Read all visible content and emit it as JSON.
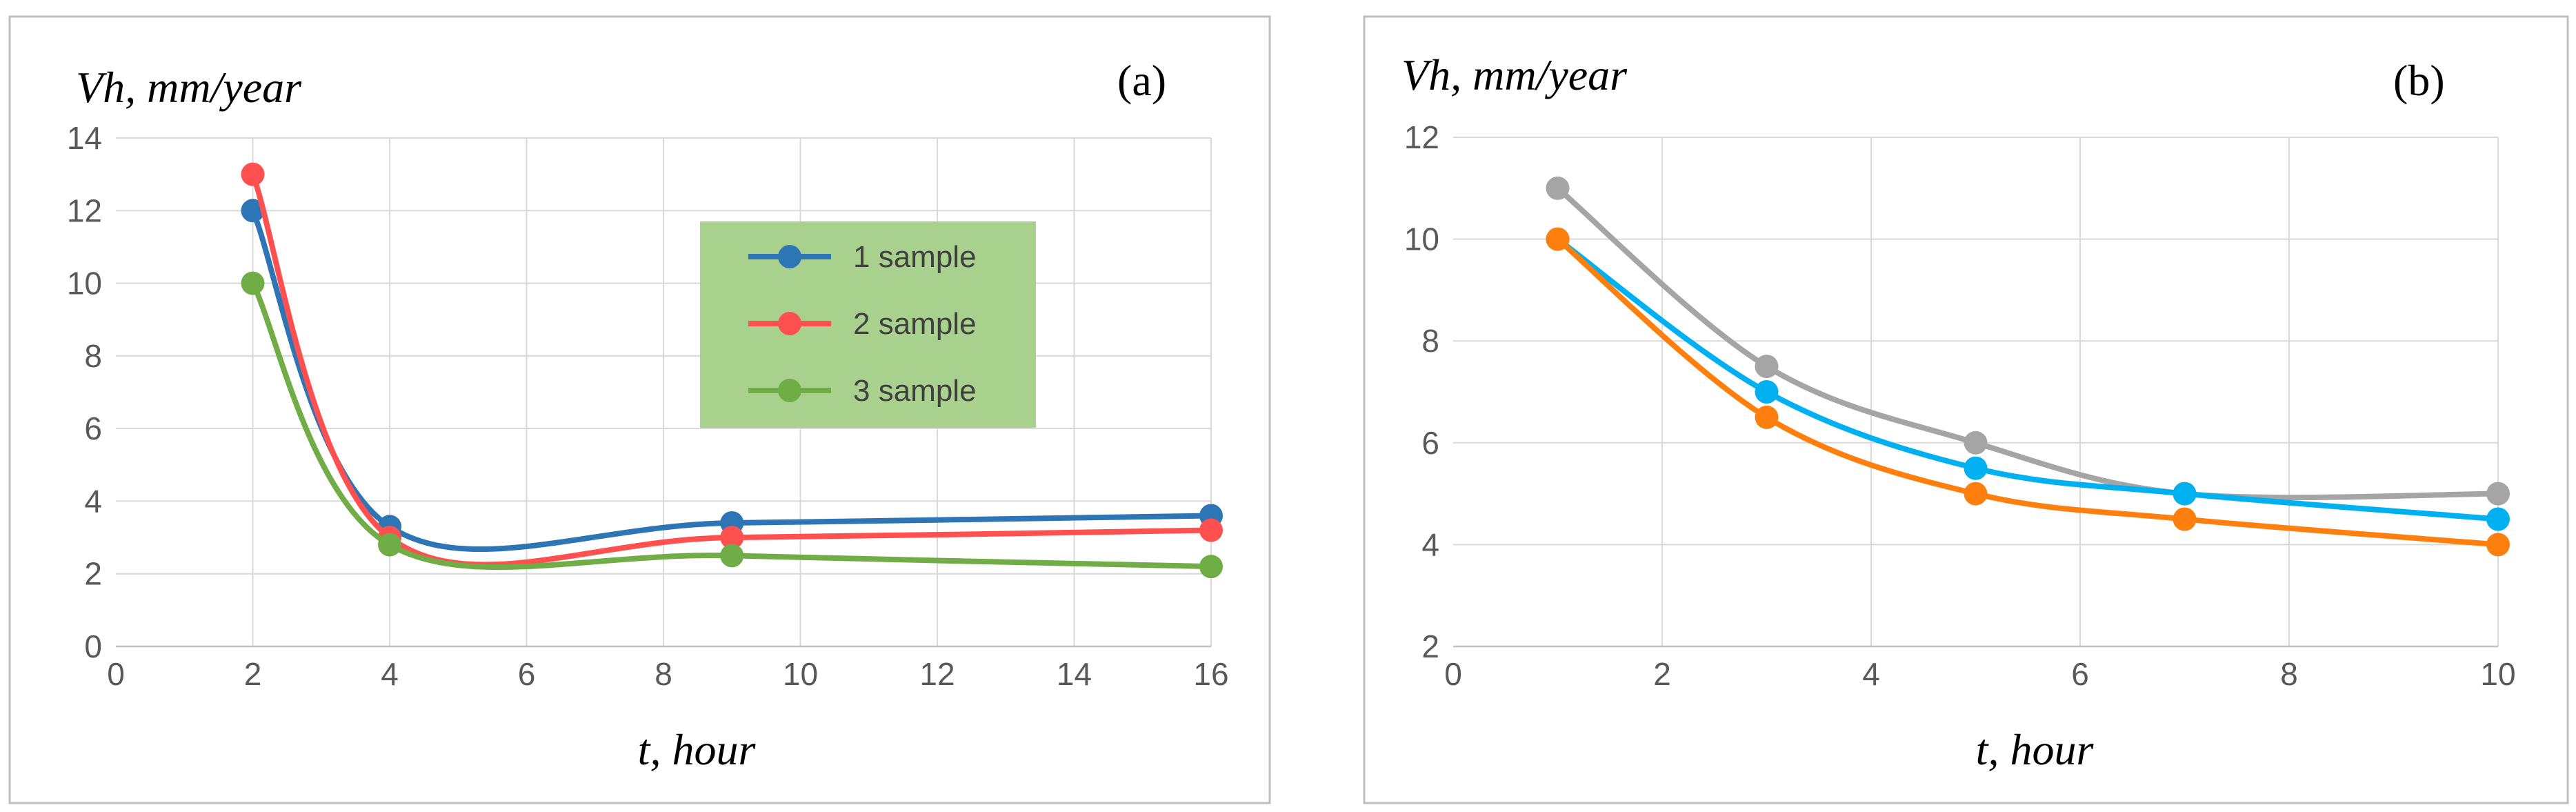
{
  "chart_data": [
    {
      "type": "line",
      "panel_label": "(a)",
      "ylabel": "Vh, mm/year",
      "xlabel": "t, hour",
      "xlim": [
        0,
        16
      ],
      "ylim": [
        0,
        14
      ],
      "x_ticks": [
        "0",
        "2",
        "4",
        "6",
        "8",
        "10",
        "12",
        "14",
        "16"
      ],
      "y_ticks": [
        "0",
        "2",
        "4",
        "6",
        "8",
        "10",
        "12",
        "14"
      ],
      "grid": true,
      "legend": "center-right",
      "legend_bg": "#a9d18e",
      "series": [
        {
          "name": "1 sample",
          "color": "#2e75b6",
          "x": [
            2,
            4,
            9,
            16
          ],
          "y": [
            12,
            3.3,
            3.4,
            3.6
          ]
        },
        {
          "name": "2 sample",
          "color": "#ff5050",
          "x": [
            2,
            4,
            9,
            16
          ],
          "y": [
            13,
            3.0,
            3.0,
            3.2
          ]
        },
        {
          "name": "3 sample",
          "color": "#70ad47",
          "x": [
            2,
            4,
            9,
            16
          ],
          "y": [
            10,
            2.8,
            2.5,
            2.2
          ]
        }
      ]
    },
    {
      "type": "line",
      "panel_label": "(b)",
      "ylabel": "Vh, mm/year",
      "xlabel": "t, hour",
      "xlim": [
        0,
        10
      ],
      "ylim": [
        2,
        12
      ],
      "x_ticks": [
        "0",
        "2",
        "4",
        "6",
        "8",
        "10"
      ],
      "y_ticks": [
        "2",
        "4",
        "6",
        "8",
        "10",
        "12"
      ],
      "grid": true,
      "series": [
        {
          "name": "gray",
          "color": "#a5a5a5",
          "x": [
            1,
            3,
            5,
            7,
            10
          ],
          "y": [
            11,
            7.5,
            6,
            5,
            5
          ]
        },
        {
          "name": "blue",
          "color": "#00b0f0",
          "x": [
            1,
            3,
            5,
            7,
            10
          ],
          "y": [
            10,
            7,
            5.5,
            5,
            4.5
          ]
        },
        {
          "name": "orange",
          "color": "#ff7f0e",
          "x": [
            1,
            3,
            5,
            7,
            10
          ],
          "y": [
            10,
            6.5,
            5,
            4.5,
            4
          ]
        }
      ]
    }
  ]
}
